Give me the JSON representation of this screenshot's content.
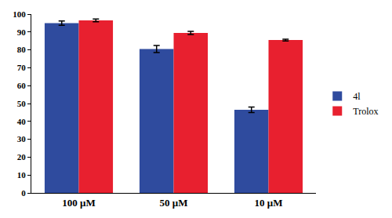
{
  "chart_data": {
    "type": "bar",
    "categories": [
      "100 μM",
      "50 μM",
      "10 μM"
    ],
    "series": [
      {
        "name": "4l",
        "color": "#2f4b9e",
        "values": [
          95,
          80.5,
          46.5
        ],
        "errors": [
          1.2,
          2,
          1.5
        ]
      },
      {
        "name": "Trolox",
        "color": "#e8202f",
        "values": [
          96.5,
          89.5,
          85.5
        ],
        "errors": [
          0.8,
          0.9,
          0.5
        ]
      }
    ],
    "ylim": [
      0,
      100
    ],
    "yticks": [
      0,
      10,
      20,
      30,
      40,
      50,
      60,
      70,
      80,
      90,
      100
    ],
    "grid": false,
    "legend": "right"
  }
}
